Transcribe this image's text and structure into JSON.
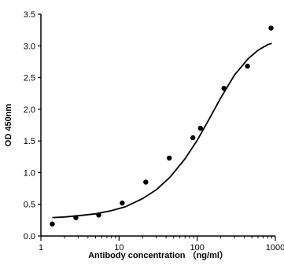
{
  "chart_data": {
    "type": "scatter",
    "title": "",
    "xlabel": "Antibody concentration （ng/ml）",
    "ylabel": "OD 450nm",
    "xscale": "log",
    "xlim": [
      1,
      1000
    ],
    "ylim": [
      0,
      3.5
    ],
    "xticks": [
      1,
      10,
      100,
      1000
    ],
    "xtick_labels": [
      "1",
      "10",
      "100",
      "1000"
    ],
    "yticks": [
      0,
      0.5,
      1.0,
      1.5,
      2.0,
      2.5,
      3.0,
      3.5
    ],
    "ytick_labels": [
      "0.0",
      "0.5",
      "1.0",
      "1.5",
      "2.0",
      "2.5",
      "3.0",
      "3.5"
    ],
    "grid": false,
    "legend": "none",
    "series": [
      {
        "type": "scatter",
        "marker": "filled-circle",
        "color": "#000000",
        "x": [
          1.4,
          2.8,
          5.5,
          11,
          22,
          44,
          88,
          110,
          220,
          440,
          880
        ],
        "y": [
          0.19,
          0.29,
          0.33,
          0.52,
          0.85,
          1.23,
          1.55,
          1.7,
          2.33,
          2.68,
          3.28
        ]
      },
      {
        "type": "line",
        "style": "fitted sigmoid curve",
        "color": "#000000",
        "x": [
          1.4,
          2,
          3,
          5,
          8,
          12,
          20,
          30,
          45,
          70,
          100,
          140,
          200,
          300,
          450,
          600,
          800,
          900
        ],
        "y": [
          0.29,
          0.3,
          0.32,
          0.35,
          0.4,
          0.46,
          0.59,
          0.73,
          0.93,
          1.22,
          1.51,
          1.83,
          2.18,
          2.54,
          2.8,
          2.93,
          3.02,
          3.04
        ]
      }
    ]
  }
}
